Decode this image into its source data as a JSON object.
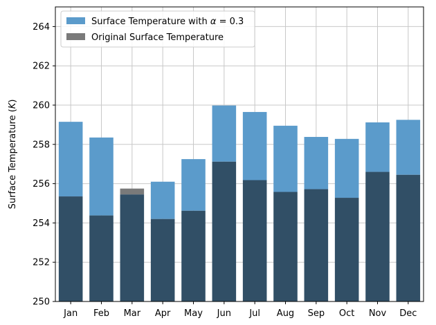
{
  "chart_data": {
    "type": "bar",
    "title": "",
    "xlabel": "",
    "ylabel": "Surface Temperature (K)",
    "ylabel_parts": {
      "prefix": "Surface Temperature (",
      "unit": "K",
      "suffix": ")"
    },
    "ylim": [
      250,
      265
    ],
    "yticks": [
      250,
      252,
      254,
      256,
      258,
      260,
      262,
      264
    ],
    "grid": true,
    "legend_position": "top-left",
    "categories": [
      "Jan",
      "Feb",
      "Mar",
      "Apr",
      "May",
      "Jun",
      "Jul",
      "Aug",
      "Sep",
      "Oct",
      "Nov",
      "Dec"
    ],
    "series": [
      {
        "name": "Surface Temperature with α = 0.3",
        "label_parts": {
          "prefix": "Surface Temperature with ",
          "symbol": "α",
          "suffix": " = 0.3"
        },
        "color": "#5b9bcb",
        "values": [
          259.15,
          258.35,
          255.45,
          256.1,
          257.25,
          259.98,
          259.65,
          258.95,
          258.38,
          258.28,
          259.12,
          259.25
        ]
      },
      {
        "name": "Original Surface Temperature",
        "color": "#7a7a7a",
        "values": [
          255.35,
          254.38,
          255.75,
          254.2,
          254.62,
          257.12,
          256.18,
          255.58,
          255.72,
          255.28,
          256.6,
          256.45
        ]
      }
    ],
    "overlap_color": "#314f66"
  }
}
